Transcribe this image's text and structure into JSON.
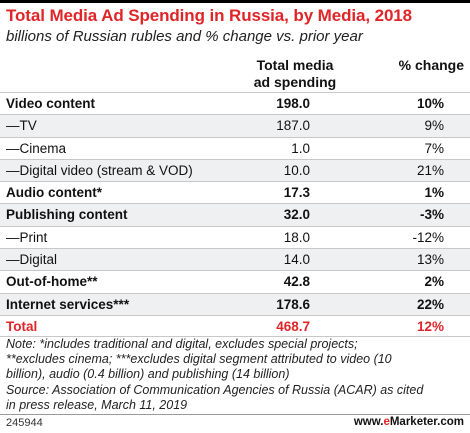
{
  "title": "Total Media Ad Spending in Russia, by Media, 2018",
  "subtitle": "billions of Russian rubles and % change vs. prior year",
  "chart_data": {
    "type": "table",
    "columns": [
      "Total media ad spending",
      "% change"
    ],
    "rows": [
      {
        "label": "Video content",
        "value": "198.0",
        "change": "10%",
        "style": "bold"
      },
      {
        "label": "—TV",
        "value": "187.0",
        "change": "9%",
        "style": "normal"
      },
      {
        "label": "—Cinema",
        "value": "1.0",
        "change": "7%",
        "style": "normal"
      },
      {
        "label": "—Digital video (stream & VOD)",
        "value": "10.0",
        "change": "21%",
        "style": "normal"
      },
      {
        "label": "Audio content*",
        "value": "17.3",
        "change": "1%",
        "style": "bold"
      },
      {
        "label": "Publishing content",
        "value": "32.0",
        "change": "-3%",
        "style": "bold"
      },
      {
        "label": "—Print",
        "value": "18.0",
        "change": "-12%",
        "style": "normal"
      },
      {
        "label": "—Digital",
        "value": "14.0",
        "change": "13%",
        "style": "normal"
      },
      {
        "label": "Out-of-home**",
        "value": "42.8",
        "change": "2%",
        "style": "bold"
      },
      {
        "label": "Internet services***",
        "value": "178.6",
        "change": "22%",
        "style": "bold"
      },
      {
        "label": "Total",
        "value": "468.7",
        "change": "12%",
        "style": "total"
      }
    ]
  },
  "header": {
    "spend_line1": "Total media",
    "spend_line2": "ad spending",
    "change": "% change"
  },
  "notes": {
    "line1": "Note: *includes traditional and digital, excludes special projects;",
    "line2": "**excludes cinema; ***excludes digital segment attributed to video (10",
    "line3": "billion), audio (0.4 billion) and publishing (14 billion)",
    "line4": "Source: Association of Communication Agencies of Russia (ACAR) as cited",
    "line5": "in press release, March 11, 2019"
  },
  "footer": {
    "id": "245944",
    "brand_prefix": "www.",
    "brand_accent": "e",
    "brand_suffix": "Marketer.com"
  },
  "colors": {
    "accent": "#e02528",
    "zebra": "#eef0f1"
  }
}
